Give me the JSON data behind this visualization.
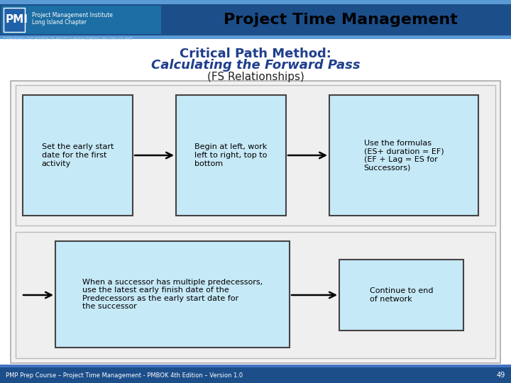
{
  "title_header": "Project Time Management",
  "title_main": "Critical Path Method:",
  "title_sub_italic": "Calculating the Forward Pass",
  "title_sub2": "(FS Relationships)",
  "header_bg": "#1C4E8A",
  "header_stripe_top": "#5B9BD5",
  "main_bg": "#ffffff",
  "box_fill": "#C6E9F7",
  "box_border": "#000000",
  "outer_box_fill": "#F2F2F2",
  "outer_box_border": "#AAAAAA",
  "title_main_color": "#1F3E8C",
  "title_sub_color": "#1F3E8C",
  "footer_bg": "#1C4E8A",
  "footer_text": "PMP Prep Course – Project Time Management - PMBOK 4th Edition – Version 1.0",
  "footer_page": "49",
  "box1_text": "Set the early start\ndate for the first\nactivity",
  "box2_text": "Begin at left, work\nleft to right, top to\nbottom",
  "box3_text": "Use the formulas\n(ES+ duration = EF)\n(EF + Lag = ES for\nSuccessors)",
  "box4_text": "When a successor has multiple predecessors,\nuse the latest early finish date of the\nPredecessors as the early start date for\nthe successor",
  "box5_text": "Continue to end\nof network",
  "pmi_logo_bg": "#1C6EA4",
  "pmi_logo_inner": "#2980B9"
}
